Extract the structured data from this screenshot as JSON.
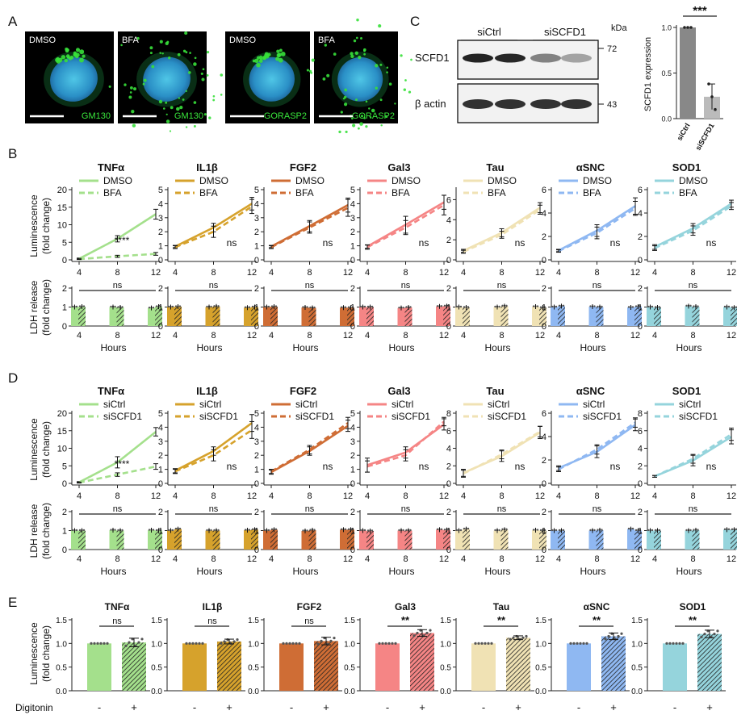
{
  "panel_letters": {
    "a": "A",
    "b": "B",
    "c": "C",
    "d": "D",
    "e": "E"
  },
  "colors": {
    "TNFa": "#a4e08c",
    "IL1b": "#d6a22c",
    "FGF2": "#cf6d35",
    "Gal3": "#f58585",
    "Tau": "#f0e2b4",
    "aSNC": "#8fb8f2",
    "SOD1": "#95d4dc",
    "grey_bar": "#888888",
    "bar_light": "#bbbbbb"
  },
  "panel_a": {
    "images": [
      {
        "condition": "DMSO",
        "marker": "GM130"
      },
      {
        "condition": "BFA",
        "marker": "GM130"
      },
      {
        "condition": "DMSO",
        "marker": "GORASP2"
      },
      {
        "condition": "BFA",
        "marker": "GORASP2"
      }
    ]
  },
  "panel_c": {
    "blot": {
      "group_labels": [
        "siCtrl",
        "siSCFD1"
      ],
      "row_labels": [
        "SCFD1",
        "β actin"
      ],
      "kda_title": "kDa",
      "kda_marks": [
        "72",
        "43"
      ]
    },
    "chart_data": {
      "type": "bar",
      "categories": [
        "siCtrl",
        "siSCFD1"
      ],
      "values": [
        1.0,
        0.24
      ],
      "points": [
        [
          1.0,
          1.0,
          1.0
        ],
        [
          0.38,
          0.24,
          0.1
        ]
      ],
      "errors": [
        0.0,
        0.14
      ],
      "ylabel": "SCFD1 expression",
      "ylim": [
        0,
        1.0
      ],
      "yticks": [
        "0.0",
        "0.5",
        "1.0"
      ],
      "significance": "***"
    }
  },
  "line_axis": {
    "x": [
      4,
      8,
      12
    ],
    "xticks": [
      "4",
      "8",
      "12"
    ]
  },
  "lum_ylabel": [
    "Luminescence",
    "(fold change)"
  ],
  "ldh_ylabel": [
    "LDH release",
    "(fold change)"
  ],
  "hours_label": "Hours",
  "panel_b": {
    "legend": [
      "DMSO",
      "BFA"
    ],
    "chart_data": [
      {
        "type": "line",
        "title": "TNFα",
        "ylim": [
          0,
          20
        ],
        "yticks": [
          "0",
          "5",
          "10",
          "15",
          "20"
        ],
        "series": [
          {
            "name": "DMSO",
            "values": [
              0.3,
              6.0,
              13.0
            ],
            "errors": [
              0.2,
              0.9,
              1.4
            ]
          },
          {
            "name": "BFA",
            "values": [
              0.2,
              1.0,
              1.7
            ],
            "errors": [
              0.1,
              0.3,
              0.4
            ]
          }
        ],
        "significance": "****"
      },
      {
        "type": "line",
        "title": "IL1β",
        "ylim": [
          0,
          5
        ],
        "yticks": [
          "0",
          "1",
          "2",
          "3",
          "4",
          "5"
        ],
        "series": [
          {
            "name": "DMSO",
            "values": [
              0.95,
              2.3,
              4.0
            ],
            "errors": [
              0.08,
              0.3,
              0.45
            ]
          },
          {
            "name": "BFA",
            "values": [
              0.9,
              2.0,
              3.8
            ],
            "errors": [
              0.1,
              0.4,
              0.5
            ]
          }
        ],
        "significance": "ns"
      },
      {
        "type": "line",
        "title": "FGF2",
        "ylim": [
          0,
          5
        ],
        "yticks": [
          "0",
          "1",
          "2",
          "3",
          "4",
          "5"
        ],
        "series": [
          {
            "name": "DMSO",
            "values": [
              0.95,
              2.4,
              3.9
            ],
            "errors": [
              0.08,
              0.4,
              0.5
            ]
          },
          {
            "name": "BFA",
            "values": [
              0.9,
              2.3,
              3.7
            ],
            "errors": [
              0.1,
              0.4,
              0.6
            ]
          }
        ],
        "significance": "ns"
      },
      {
        "type": "line",
        "title": "Gal3",
        "ylim": [
          0,
          5
        ],
        "yticks": [
          "0",
          "1",
          "2",
          "3",
          "4",
          "5"
        ],
        "series": [
          {
            "name": "DMSO",
            "values": [
              0.95,
              2.5,
              4.1
            ],
            "errors": [
              0.12,
              0.6,
              0.5
            ]
          },
          {
            "name": "BFA",
            "values": [
              0.9,
              2.3,
              3.9
            ],
            "errors": [
              0.15,
              0.5,
              0.7
            ]
          }
        ],
        "significance": "ns"
      },
      {
        "type": "line",
        "title": "Tau",
        "ylim": [
          0,
          7
        ],
        "yticks": [
          "0",
          "2",
          "4",
          "6"
        ],
        "series": [
          {
            "name": "DMSO",
            "values": [
              0.9,
              2.7,
              5.2
            ],
            "errors": [
              0.15,
              0.4,
              0.5
            ]
          },
          {
            "name": "BFA",
            "values": [
              0.8,
              2.5,
              5.0
            ],
            "errors": [
              0.15,
              0.35,
              0.45
            ]
          }
        ],
        "significance": "ns"
      },
      {
        "type": "line",
        "title": "αSNC",
        "ylim": [
          0,
          6
        ],
        "yticks": [
          "0",
          "2",
          "4",
          "6"
        ],
        "series": [
          {
            "name": "DMSO",
            "values": [
              0.8,
              2.5,
              4.6
            ],
            "errors": [
              0.1,
              0.5,
              0.7
            ]
          },
          {
            "name": "BFA",
            "values": [
              0.75,
              2.3,
              4.4
            ],
            "errors": [
              0.1,
              0.5,
              0.6
            ]
          }
        ],
        "significance": "ns"
      },
      {
        "type": "line",
        "title": "SOD1",
        "ylim": [
          0,
          6
        ],
        "yticks": [
          "0",
          "2",
          "4",
          "6"
        ],
        "series": [
          {
            "name": "DMSO",
            "values": [
              1.1,
              2.7,
              4.8
            ],
            "errors": [
              0.2,
              0.4,
              0.3
            ]
          },
          {
            "name": "BFA",
            "values": [
              1.0,
              2.5,
              4.6
            ],
            "errors": [
              0.2,
              0.4,
              0.3
            ]
          }
        ],
        "significance": "ns"
      }
    ],
    "ldh": {
      "type": "bar",
      "ylim": [
        0,
        2
      ],
      "yticks": [
        "0",
        "1",
        "2"
      ],
      "significance": "ns",
      "groups": [
        "4",
        "8",
        "12"
      ],
      "values": [
        [
          [
            1.0,
            1.02
          ],
          [
            1.0,
            0.98
          ],
          [
            0.95,
            1.02
          ]
        ],
        [
          [
            1.0,
            1.02
          ],
          [
            1.0,
            1.03
          ],
          [
            0.97,
            1.0
          ]
        ],
        [
          [
            1.0,
            1.02
          ],
          [
            0.98,
            0.96
          ],
          [
            0.97,
            0.97
          ]
        ],
        [
          [
            1.0,
            1.0
          ],
          [
            0.95,
            0.98
          ],
          [
            1.03,
            1.05
          ]
        ],
        [
          [
            1.0,
            0.98
          ],
          [
            1.0,
            1.05
          ],
          [
            1.02,
            0.97
          ]
        ],
        [
          [
            1.0,
            1.05
          ],
          [
            1.02,
            1.0
          ],
          [
            0.98,
            1.02
          ]
        ],
        [
          [
            1.0,
            0.98
          ],
          [
            1.05,
            1.02
          ],
          [
            1.0,
            0.97
          ]
        ]
      ]
    }
  },
  "panel_d": {
    "legend": [
      "siCtrl",
      "siSCFD1"
    ],
    "chart_data": [
      {
        "type": "line",
        "title": "TNFα",
        "ylim": [
          0,
          20
        ],
        "yticks": [
          "0",
          "5",
          "10",
          "15",
          "20"
        ],
        "series": [
          {
            "name": "siCtrl",
            "values": [
              0.3,
              6.0,
              14.7
            ],
            "errors": [
              0.2,
              1.6,
              1.2
            ]
          },
          {
            "name": "siSCFD1",
            "values": [
              0.2,
              2.5,
              4.8
            ],
            "errors": [
              0.1,
              0.5,
              0.8
            ]
          }
        ],
        "significance": "****"
      },
      {
        "type": "line",
        "title": "IL1β",
        "ylim": [
          0,
          5
        ],
        "yticks": [
          "0",
          "1",
          "2",
          "3",
          "4",
          "5"
        ],
        "series": [
          {
            "name": "siCtrl",
            "values": [
              0.9,
              2.3,
              4.3
            ],
            "errors": [
              0.15,
              0.3,
              0.6
            ]
          },
          {
            "name": "siSCFD1",
            "values": [
              0.85,
              2.0,
              3.8
            ],
            "errors": [
              0.15,
              0.4,
              0.6
            ]
          }
        ],
        "significance": "ns"
      },
      {
        "type": "line",
        "title": "FGF2",
        "ylim": [
          0,
          5
        ],
        "yticks": [
          "0",
          "1",
          "2",
          "3",
          "4",
          "5"
        ],
        "series": [
          {
            "name": "siCtrl",
            "values": [
              0.8,
              2.3,
              4.1
            ],
            "errors": [
              0.15,
              0.3,
              0.4
            ]
          },
          {
            "name": "siSCFD1",
            "values": [
              0.85,
              2.4,
              4.3
            ],
            "errors": [
              0.15,
              0.3,
              0.4
            ]
          }
        ],
        "significance": "ns"
      },
      {
        "type": "line",
        "title": "Gal3",
        "ylim": [
          0,
          5
        ],
        "yticks": [
          "0",
          "1",
          "2",
          "3",
          "4",
          "5"
        ],
        "series": [
          {
            "name": "siCtrl",
            "values": [
              1.3,
              2.2,
              4.2
            ],
            "errors": [
              0.5,
              0.4,
              0.4
            ]
          },
          {
            "name": "siSCFD1",
            "values": [
              1.2,
              2.0,
              4.4
            ],
            "errors": [
              0.4,
              0.4,
              0.3
            ]
          }
        ],
        "significance": "ns"
      },
      {
        "type": "line",
        "title": "Tau",
        "ylim": [
          0,
          8
        ],
        "yticks": [
          "0",
          "2",
          "4",
          "6",
          "8"
        ],
        "series": [
          {
            "name": "siCtrl",
            "values": [
              1.2,
              3.1,
              5.8
            ],
            "errors": [
              0.4,
              0.6,
              0.7
            ]
          },
          {
            "name": "siSCFD1",
            "values": [
              1.1,
              3.3,
              5.9
            ],
            "errors": [
              0.4,
              0.5,
              0.6
            ]
          }
        ],
        "significance": "ns"
      },
      {
        "type": "line",
        "title": "αSNC",
        "ylim": [
          0,
          6
        ],
        "yticks": [
          "0",
          "2",
          "4",
          "6"
        ],
        "series": [
          {
            "name": "siCtrl",
            "values": [
              1.3,
              2.7,
              5.0
            ],
            "errors": [
              0.2,
              0.5,
              0.5
            ]
          },
          {
            "name": "siSCFD1",
            "values": [
              1.2,
              2.9,
              5.2
            ],
            "errors": [
              0.2,
              0.4,
              0.4
            ]
          }
        ],
        "significance": "ns"
      },
      {
        "type": "line",
        "title": "SOD1",
        "ylim": [
          0,
          8
        ],
        "yticks": [
          "0",
          "2",
          "4",
          "6",
          "8"
        ],
        "series": [
          {
            "name": "siCtrl",
            "values": [
              0.8,
              2.6,
              5.3
            ],
            "errors": [
              0.1,
              0.6,
              0.8
            ]
          },
          {
            "name": "siSCFD1",
            "values": [
              0.8,
              2.8,
              5.6
            ],
            "errors": [
              0.1,
              0.5,
              0.7
            ]
          }
        ],
        "significance": "ns"
      }
    ],
    "ldh": {
      "type": "bar",
      "ylim": [
        0,
        2
      ],
      "yticks": [
        "0",
        "1",
        "2"
      ],
      "significance": "ns",
      "groups": [
        "4",
        "8",
        "12"
      ],
      "values": [
        [
          [
            1.0,
            1.0
          ],
          [
            1.02,
            1.0
          ],
          [
            1.02,
            1.0
          ]
        ],
        [
          [
            1.0,
            1.08
          ],
          [
            1.0,
            1.0
          ],
          [
            1.02,
            1.05
          ]
        ],
        [
          [
            1.0,
            1.05
          ],
          [
            0.98,
            1.02
          ],
          [
            1.05,
            1.05
          ]
        ],
        [
          [
            1.0,
            0.98
          ],
          [
            1.0,
            1.0
          ],
          [
            1.05,
            1.03
          ]
        ],
        [
          [
            1.0,
            1.08
          ],
          [
            1.0,
            1.05
          ],
          [
            1.02,
            1.0
          ]
        ],
        [
          [
            1.0,
            1.0
          ],
          [
            1.0,
            1.02
          ],
          [
            1.08,
            1.0
          ]
        ],
        [
          [
            1.0,
            1.0
          ],
          [
            1.0,
            1.02
          ],
          [
            1.05,
            1.05
          ]
        ]
      ]
    }
  },
  "panel_e": {
    "xlabel": "Digitonin",
    "categories": [
      "-",
      "+"
    ],
    "ylim": [
      0,
      1.5
    ],
    "yticks": [
      "0.0",
      "0.5",
      "1.0",
      "1.5"
    ],
    "chart_data": [
      {
        "type": "bar",
        "title": "TNFα",
        "values": [
          1.0,
          1.02
        ],
        "errors": [
          0.0,
          0.09
        ],
        "significance": "ns"
      },
      {
        "type": "bar",
        "title": "IL1β",
        "values": [
          1.0,
          1.04
        ],
        "errors": [
          0.0,
          0.05
        ],
        "significance": "ns"
      },
      {
        "type": "bar",
        "title": "FGF2",
        "values": [
          1.0,
          1.05
        ],
        "errors": [
          0.0,
          0.08
        ],
        "significance": "ns"
      },
      {
        "type": "bar",
        "title": "Gal3",
        "values": [
          1.0,
          1.22
        ],
        "errors": [
          0.0,
          0.07
        ],
        "significance": "**"
      },
      {
        "type": "bar",
        "title": "Tau",
        "values": [
          1.0,
          1.12
        ],
        "errors": [
          0.0,
          0.04
        ],
        "significance": "**"
      },
      {
        "type": "bar",
        "title": "αSNC",
        "values": [
          1.0,
          1.15
        ],
        "errors": [
          0.0,
          0.07
        ],
        "significance": "**"
      },
      {
        "type": "bar",
        "title": "SOD1",
        "values": [
          1.0,
          1.2
        ],
        "errors": [
          0.0,
          0.08
        ],
        "significance": "**"
      }
    ]
  }
}
